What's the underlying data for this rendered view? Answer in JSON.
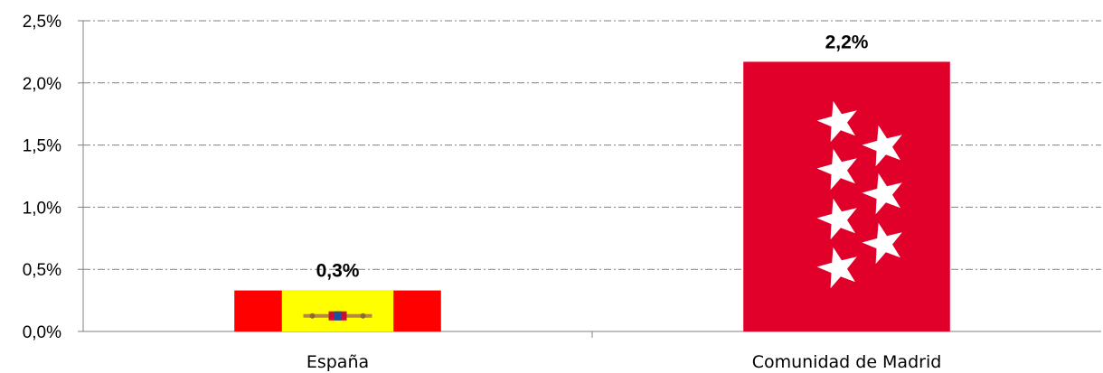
{
  "chart_data": {
    "type": "bar",
    "categories": [
      "España",
      "Comunidad de Madrid"
    ],
    "values": [
      0.33,
      2.17
    ],
    "data_labels": [
      "0,3%",
      "2,2%"
    ],
    "ylim": [
      0,
      2.5
    ],
    "yticks": [
      0,
      0.5,
      1.0,
      1.5,
      2.0,
      2.5
    ],
    "ytick_labels": [
      "0,0%",
      "0,5%",
      "1,0%",
      "1,5%",
      "2,0%",
      "2,5%"
    ],
    "title": "",
    "xlabel": "",
    "ylabel": "",
    "grid": true,
    "legend": "none",
    "bar_fills": [
      "spain-flag",
      "madrid-flag"
    ],
    "colors": {
      "spain_red": "#ff0000",
      "spain_yellow": "#ffff00",
      "madrid_red": "#e0002a",
      "star": "#ffffff",
      "grid": "#808080"
    }
  }
}
